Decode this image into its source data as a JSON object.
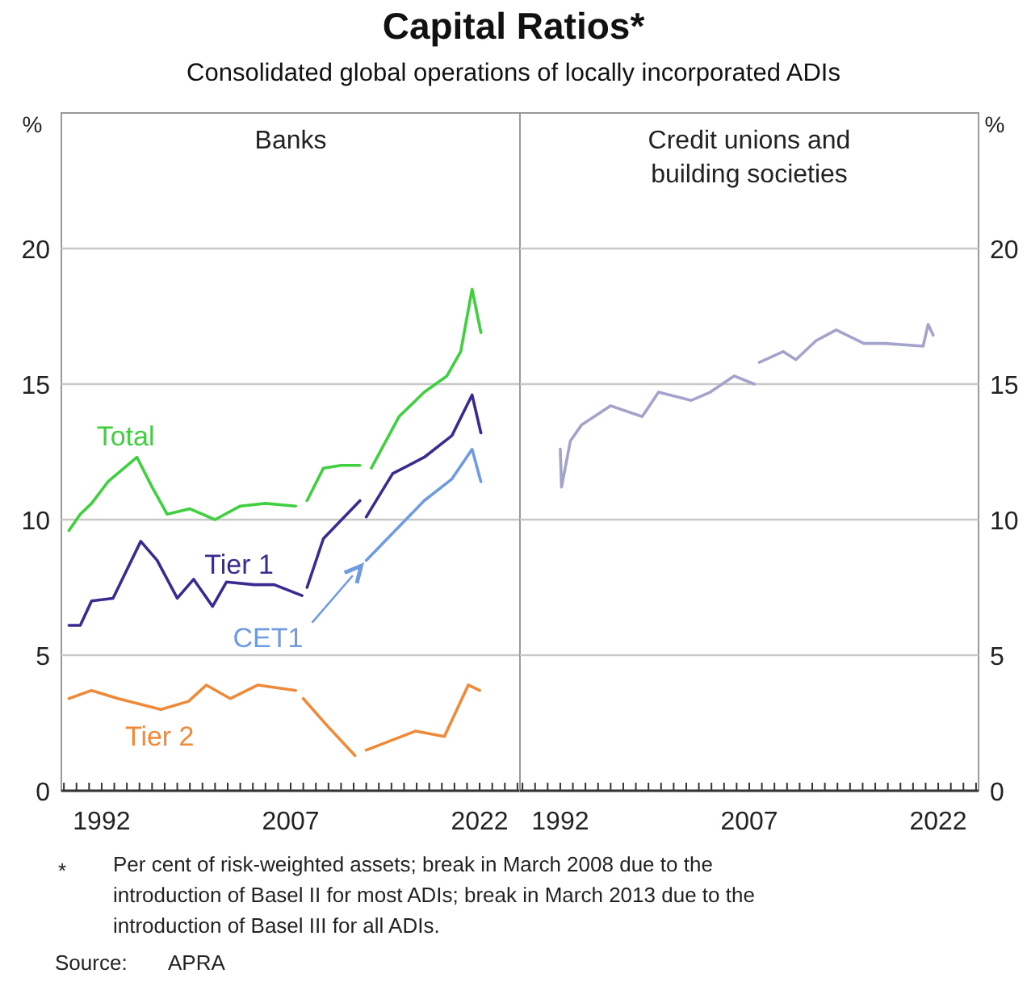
{
  "chart_data": [
    {
      "type": "other",
      "title": "Capital Ratios*",
      "subtitle": "Consolidated global operations of locally incorporated ADIs",
      "annotations": [
        "*\tPer cent of risk-weighted assets; break in March 2008 due to the introduction of Basel II for most ADIs; break in March 2013 due to the introduction of Basel III for all ADIs.",
        "Source:\tAPRA"
      ]
    },
    {
      "type": "line",
      "title": "Banks",
      "ylabel": "%",
      "xlim": [
        1988.8,
        2025.2
      ],
      "ylim": [
        0,
        25
      ],
      "yticks": [
        0,
        5,
        10,
        15,
        20
      ],
      "grid": "y",
      "xticks": [
        {
          "value": 1989,
          "label": null
        },
        {
          "value": 1990,
          "label": null
        },
        {
          "value": 1991,
          "label": null
        },
        1992,
        {
          "value": 1993,
          "label": null
        },
        {
          "value": 1994,
          "label": null
        },
        {
          "value": 1995,
          "label": null
        },
        {
          "value": 1996,
          "label": null
        },
        {
          "value": 1997,
          "label": null
        },
        {
          "value": 1998,
          "label": null
        },
        {
          "value": 1999,
          "label": null
        },
        {
          "value": 2000,
          "label": null
        },
        {
          "value": 2001,
          "label": null
        },
        {
          "value": 2002,
          "label": null
        },
        {
          "value": 2003,
          "label": null
        },
        {
          "value": 2004,
          "label": null
        },
        {
          "value": 2005,
          "label": null
        },
        {
          "value": 2006,
          "label": null
        },
        2007,
        {
          "value": 2008,
          "label": null
        },
        {
          "value": 2009,
          "label": null
        },
        {
          "value": 2010,
          "label": null
        },
        {
          "value": 2011,
          "label": null
        },
        {
          "value": 2012,
          "label": null
        },
        {
          "value": 2013,
          "label": null
        },
        {
          "value": 2014,
          "label": null
        },
        {
          "value": 2015,
          "label": null
        },
        {
          "value": 2016,
          "label": null
        },
        {
          "value": 2017,
          "label": null
        },
        {
          "value": 2018,
          "label": null
        },
        {
          "value": 2019,
          "label": null
        },
        {
          "value": 2020,
          "label": null
        },
        {
          "value": 2021,
          "label": null
        },
        2022,
        {
          "value": 2023,
          "label": null
        },
        {
          "value": 2024,
          "label": null
        },
        {
          "value": 2025,
          "label": null
        }
      ],
      "series": [
        {
          "name": "Total",
          "color": "#3fcf3f",
          "x": [
            1989.4,
            1990.3,
            1991.2,
            1992.5,
            1994.8,
            1996,
            1997.2,
            1999,
            2001,
            2003,
            2005,
            2007.4,
            2008.1,
            2008.3,
            2009.6,
            2011,
            2012.5,
            2013.1,
            2013.4,
            2015.6,
            2017.6,
            2019.4,
            2020.5,
            2021.4,
            2022.1
          ],
          "values": [
            9.6,
            10.2,
            10.6,
            11.4,
            12.3,
            11.2,
            10.2,
            10.4,
            10.0,
            10.5,
            10.6,
            10.5,
            null,
            10.7,
            11.9,
            12.0,
            12.0,
            null,
            11.9,
            13.8,
            14.7,
            15.3,
            16.2,
            18.5,
            16.9
          ]
        },
        {
          "name": "Tier 1",
          "color": "#3b2a8f",
          "x": [
            1989.4,
            1990.3,
            1991.2,
            1992.9,
            1995.1,
            1996.4,
            1998,
            1999.3,
            2000.8,
            2001.9,
            2004.1,
            2005.7,
            2007.9,
            2008.1,
            2008.3,
            2009.6,
            2012.5,
            2012.8,
            2013,
            2015.1,
            2017.6,
            2019.8,
            2021.4,
            2022.1
          ],
          "values": [
            6.1,
            6.1,
            7.0,
            7.1,
            9.2,
            8.5,
            7.1,
            7.8,
            6.8,
            7.7,
            7.6,
            7.6,
            7.2,
            null,
            7.5,
            9.3,
            10.7,
            null,
            10.1,
            11.7,
            12.3,
            13.1,
            14.6,
            13.2
          ]
        },
        {
          "name": "CET1",
          "color": "#6f9be0",
          "x": [
            2013,
            2015.1,
            2017.6,
            2019.8,
            2021.4,
            2022.1
          ],
          "values": [
            8.5,
            9.5,
            10.7,
            11.5,
            12.6,
            11.4
          ]
        },
        {
          "name": "Tier 2",
          "color": "#ee8a3a",
          "x": [
            1989.4,
            1991.2,
            1993.3,
            1996.7,
            1998.9,
            2000.3,
            2002.2,
            2004.4,
            2007.4,
            2007.8,
            2008,
            2009.9,
            2012.1,
            2012.6,
            2013,
            2016.9,
            2019.2,
            2021.1,
            2022
          ],
          "values": [
            3.4,
            3.7,
            3.4,
            3.0,
            3.3,
            3.9,
            3.4,
            3.9,
            3.7,
            null,
            3.4,
            2.4,
            1.3,
            null,
            1.5,
            2.2,
            2.0,
            3.9,
            3.7
          ]
        }
      ]
    },
    {
      "type": "line",
      "title": "Credit unions and building societies",
      "ylabel": "%",
      "xlim": [
        1988.8,
        2025.2
      ],
      "ylim": [
        0,
        25
      ],
      "yticks": [
        0,
        5,
        10,
        15,
        20
      ],
      "grid": "y",
      "xticks": [
        {
          "value": 1989,
          "label": null
        },
        {
          "value": 1990,
          "label": null
        },
        {
          "value": 1991,
          "label": null
        },
        1992,
        {
          "value": 1993,
          "label": null
        },
        {
          "value": 1994,
          "label": null
        },
        {
          "value": 1995,
          "label": null
        },
        {
          "value": 1996,
          "label": null
        },
        {
          "value": 1997,
          "label": null
        },
        {
          "value": 1998,
          "label": null
        },
        {
          "value": 1999,
          "label": null
        },
        {
          "value": 2000,
          "label": null
        },
        {
          "value": 2001,
          "label": null
        },
        {
          "value": 2002,
          "label": null
        },
        {
          "value": 2003,
          "label": null
        },
        {
          "value": 2004,
          "label": null
        },
        {
          "value": 2005,
          "label": null
        },
        {
          "value": 2006,
          "label": null
        },
        2007,
        {
          "value": 2008,
          "label": null
        },
        {
          "value": 2009,
          "label": null
        },
        {
          "value": 2010,
          "label": null
        },
        {
          "value": 2011,
          "label": null
        },
        {
          "value": 2012,
          "label": null
        },
        {
          "value": 2013,
          "label": null
        },
        {
          "value": 2014,
          "label": null
        },
        {
          "value": 2015,
          "label": null
        },
        {
          "value": 2016,
          "label": null
        },
        {
          "value": 2017,
          "label": null
        },
        {
          "value": 2018,
          "label": null
        },
        {
          "value": 2019,
          "label": null
        },
        {
          "value": 2020,
          "label": null
        },
        {
          "value": 2021,
          "label": null
        },
        2022,
        {
          "value": 2023,
          "label": null
        },
        {
          "value": 2024,
          "label": null
        },
        {
          "value": 2025,
          "label": null
        }
      ],
      "series": [
        {
          "color": "#a3a3cc",
          "x": [
            1992,
            1992.1,
            1992.8,
            1993.7,
            1996,
            1998.5,
            1999.8,
            2002.4,
            2003.9,
            2005.8,
            2007.4,
            2007.6,
            2007.8,
            2009.7,
            2010.7,
            2012.3,
            2013.9,
            2016.1,
            2017.8,
            2020.8,
            2021.2,
            2021.6
          ],
          "values": [
            12.6,
            11.2,
            12.9,
            13.5,
            14.2,
            13.8,
            14.7,
            14.4,
            14.7,
            15.3,
            15.0,
            null,
            15.8,
            16.2,
            15.9,
            16.6,
            17.0,
            16.5,
            16.5,
            16.4,
            17.2,
            16.8
          ]
        }
      ]
    }
  ]
}
